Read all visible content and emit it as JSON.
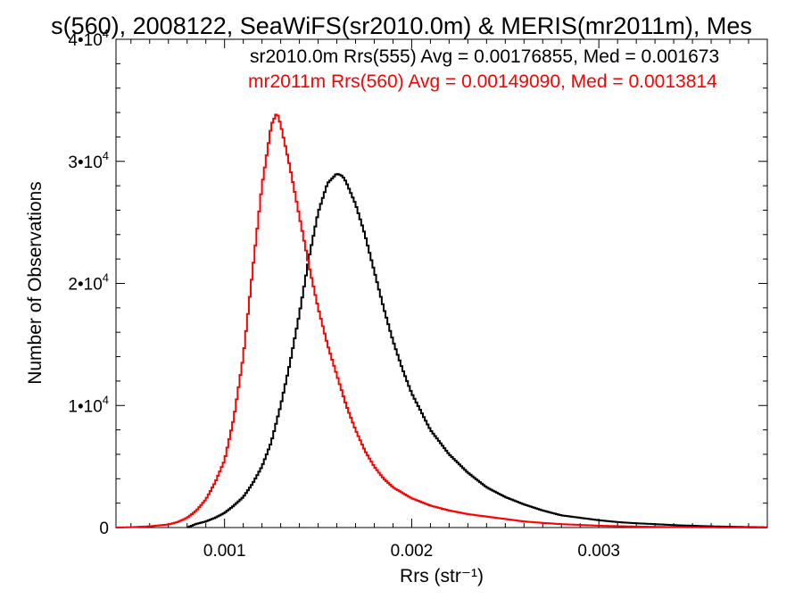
{
  "chart_data": {
    "type": "line",
    "title": "s(560), 2008122, SeaWiFS(sr2010.0m) & MERIS(mr2011m), Mes",
    "xlabel": "Rrs (str⁻¹)",
    "ylabel": "Number of Observations",
    "xlim": [
      0.00042,
      0.0039
    ],
    "ylim": [
      0,
      40000
    ],
    "x_ticks": [
      {
        "value": 0.001,
        "label": "0.001"
      },
      {
        "value": 0.002,
        "label": "0.002"
      },
      {
        "value": 0.003,
        "label": "0.003"
      }
    ],
    "y_ticks": [
      {
        "value": 0,
        "mant": "0",
        "exp": ""
      },
      {
        "value": 10000,
        "mant": "1•10",
        "exp": "4"
      },
      {
        "value": 20000,
        "mant": "2•10",
        "exp": "4"
      },
      {
        "value": 30000,
        "mant": "3•10",
        "exp": "4"
      },
      {
        "value": 40000,
        "mant": "4•10",
        "exp": "4"
      }
    ],
    "step": true,
    "series": [
      {
        "name": "sr2010.0m Rrs(555) Avg = 0.00176855, Med = 0.001673",
        "color": "#000000",
        "x": [
          0.0008,
          0.00085,
          0.0009,
          0.00095,
          0.001,
          0.00105,
          0.0011,
          0.00115,
          0.0012,
          0.00125,
          0.0013,
          0.00135,
          0.0014,
          0.00145,
          0.0015,
          0.00155,
          0.0016,
          0.00163,
          0.00165,
          0.0017,
          0.00175,
          0.0018,
          0.00185,
          0.0019,
          0.00195,
          0.002,
          0.0021,
          0.0022,
          0.0023,
          0.0024,
          0.0025,
          0.0026,
          0.0027,
          0.0028,
          0.0029,
          0.003,
          0.0031,
          0.0032,
          0.0033,
          0.0034,
          0.0035,
          0.0036,
          0.0037,
          0.0038,
          0.0039
        ],
        "y": [
          0,
          300,
          500,
          800,
          1200,
          1800,
          2500,
          3600,
          5000,
          7000,
          10000,
          13500,
          17500,
          22000,
          25800,
          28200,
          29000,
          28800,
          28300,
          26500,
          24000,
          21000,
          18000,
          15300,
          13000,
          11000,
          8000,
          6000,
          4500,
          3300,
          2500,
          1900,
          1400,
          1000,
          800,
          600,
          450,
          350,
          280,
          200,
          150,
          100,
          70,
          40,
          20
        ]
      },
      {
        "name": "mr2011m Rrs(560) Avg = 0.00149090, Med = 0.0013814",
        "color": "#ff0000",
        "x": [
          0.00042,
          0.0005,
          0.0006,
          0.0007,
          0.00075,
          0.0008,
          0.00085,
          0.0009,
          0.00095,
          0.001,
          0.00105,
          0.0011,
          0.00115,
          0.0012,
          0.00125,
          0.00128,
          0.0013,
          0.00135,
          0.0014,
          0.00145,
          0.0015,
          0.00155,
          0.0016,
          0.00165,
          0.0017,
          0.00175,
          0.0018,
          0.00185,
          0.0019,
          0.002,
          0.0021,
          0.0022,
          0.0023,
          0.0024,
          0.0025,
          0.0026,
          0.0027,
          0.0028,
          0.003,
          0.0032,
          0.0034,
          0.0036,
          0.0039
        ],
        "y": [
          0,
          30,
          100,
          250,
          450,
          800,
          1400,
          2300,
          3700,
          5500,
          9000,
          14000,
          21000,
          28000,
          33000,
          34000,
          33000,
          29500,
          25500,
          21500,
          18000,
          15000,
          12500,
          10000,
          8000,
          6300,
          5000,
          4000,
          3300,
          2400,
          1800,
          1400,
          1100,
          900,
          700,
          500,
          380,
          280,
          150,
          80,
          40,
          15,
          0
        ]
      }
    ]
  }
}
